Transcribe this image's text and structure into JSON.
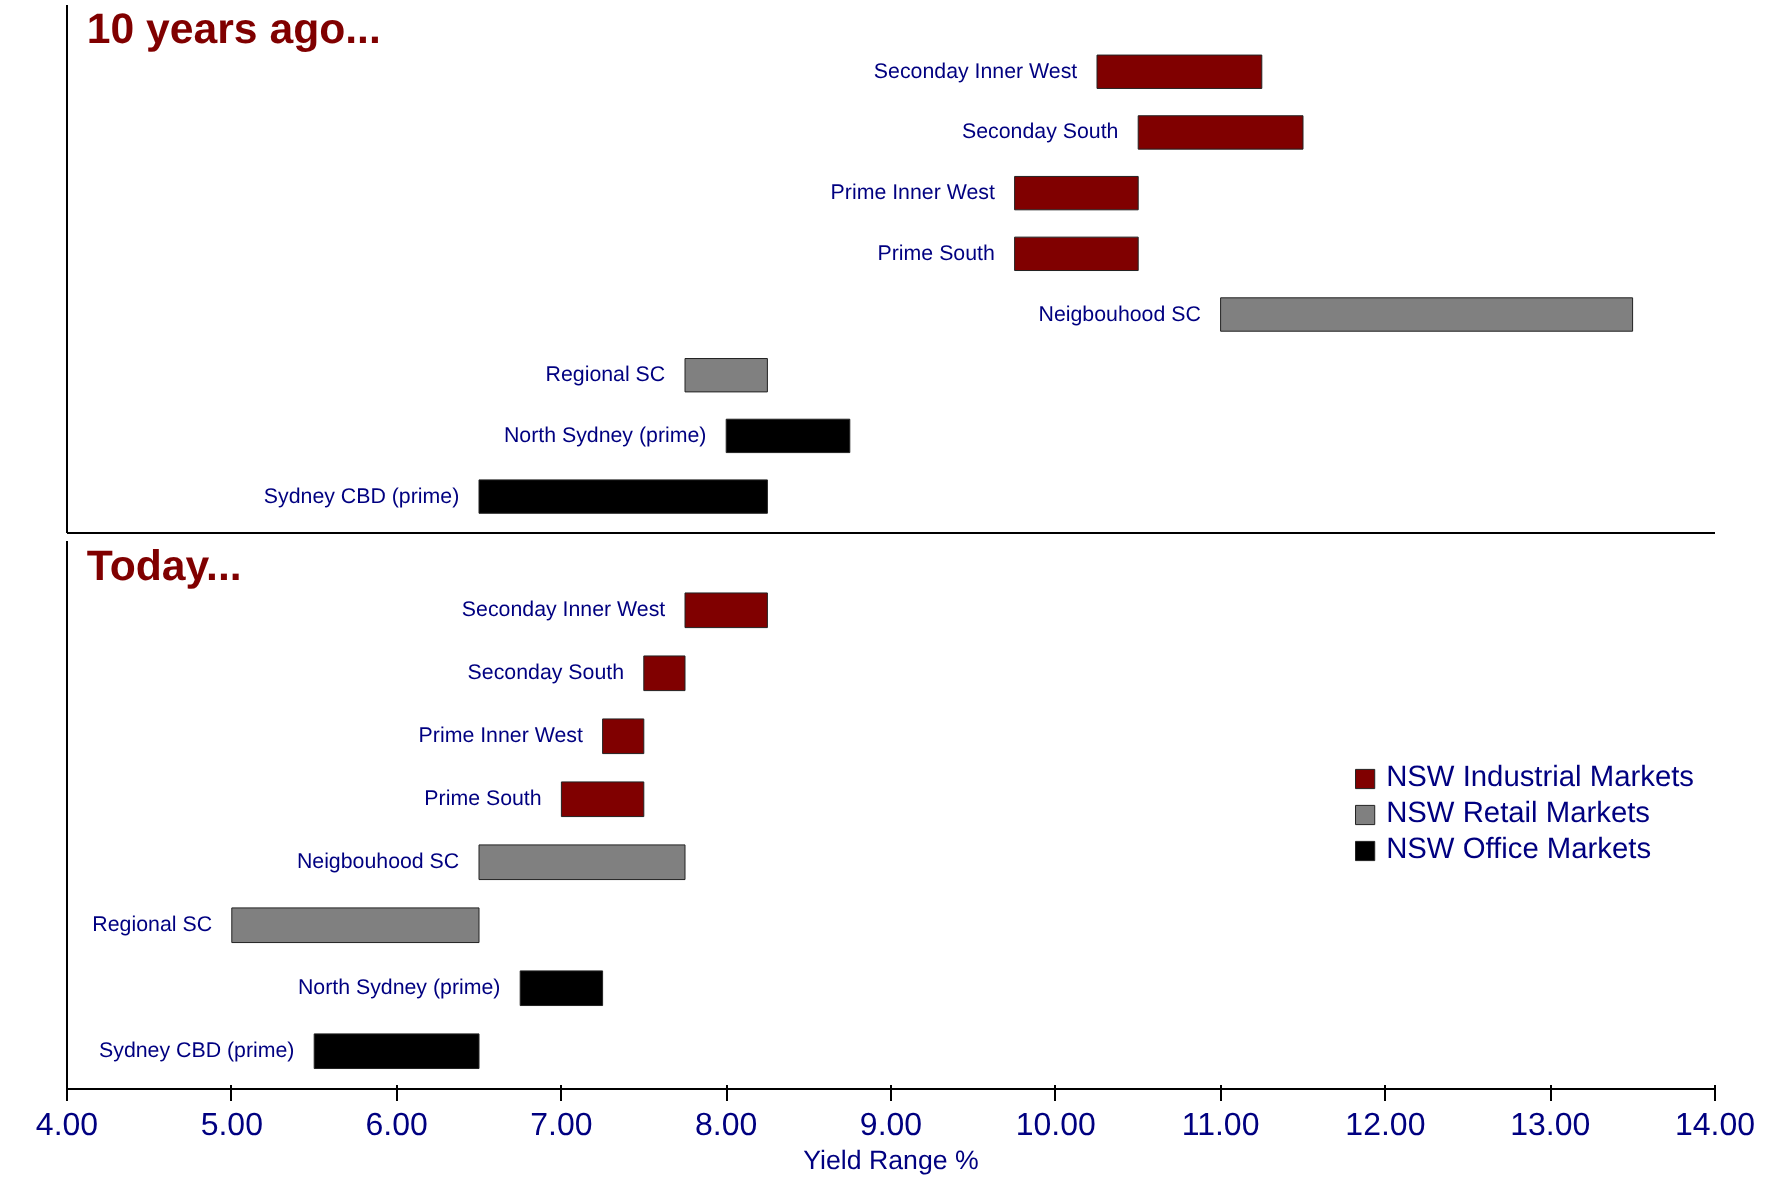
{
  "chart_data": [
    {
      "type": "bar",
      "orientation": "horizontal",
      "title": "10 years ago...",
      "categories": [
        "Seconday Inner West",
        "Seconday South",
        "Prime Inner West",
        "Prime South",
        "Neigbouhood SC",
        "Regional SC",
        "North Sydney (prime)",
        "Sydney CBD (prime)"
      ],
      "series": [
        {
          "color": "#800000",
          "base": [
            10.25,
            10.5,
            9.75,
            9.75,
            null,
            null,
            null,
            null
          ],
          "values": [
            1.0,
            1.0,
            0.75,
            0.75,
            null,
            null,
            null,
            null
          ]
        },
        {
          "color": "#808080",
          "base": [
            null,
            null,
            null,
            null,
            11.0,
            7.75,
            null,
            null
          ],
          "values": [
            null,
            null,
            null,
            null,
            2.5,
            0.5,
            null,
            null
          ]
        },
        {
          "color": "#000000",
          "base": [
            null,
            null,
            null,
            null,
            null,
            null,
            8.0,
            6.5
          ],
          "values": [
            null,
            null,
            null,
            null,
            null,
            null,
            0.75,
            1.75
          ]
        }
      ],
      "xlim": [
        4,
        14
      ],
      "tick_labels": false,
      "grid": false,
      "legend": false
    },
    {
      "type": "bar",
      "orientation": "horizontal",
      "title": "Today...",
      "xlabel": "Yield Range %",
      "categories": [
        "Seconday Inner West",
        "Seconday South",
        "Prime Inner West",
        "Prime South",
        "Neigbouhood SC",
        "Regional SC",
        "North Sydney (prime)",
        "Sydney CBD (prime)"
      ],
      "series": [
        {
          "name": "NSW Industrial Markets",
          "color": "#800000",
          "base": [
            7.75,
            7.5,
            7.25,
            7.0,
            null,
            null,
            null,
            null
          ],
          "values": [
            0.5,
            0.25,
            0.25,
            0.5,
            null,
            null,
            null,
            null
          ]
        },
        {
          "name": "NSW Retail Markets",
          "color": "#808080",
          "base": [
            null,
            null,
            null,
            null,
            6.5,
            5.0,
            null,
            null
          ],
          "values": [
            null,
            null,
            null,
            null,
            1.25,
            1.5,
            null,
            null
          ]
        },
        {
          "name": "NSW Office Markets",
          "color": "#000000",
          "base": [
            null,
            null,
            null,
            null,
            null,
            null,
            6.75,
            5.5
          ],
          "values": [
            null,
            null,
            null,
            null,
            null,
            null,
            0.5,
            1.0
          ]
        }
      ],
      "xlim": [
        4,
        14
      ],
      "xticks": [
        {
          "value": 4,
          "label": "4.00"
        },
        {
          "value": 5,
          "label": "5.00"
        },
        {
          "value": 6,
          "label": "6.00"
        },
        {
          "value": 7,
          "label": "7.00"
        },
        {
          "value": 8,
          "label": "8.00"
        },
        {
          "value": 9,
          "label": "9.00"
        },
        {
          "value": 10,
          "label": "10.00"
        },
        {
          "value": 11,
          "label": "11.00"
        },
        {
          "value": 12,
          "label": "12.00"
        },
        {
          "value": 13,
          "label": "13.00"
        },
        {
          "value": 14,
          "label": "14.00"
        }
      ],
      "tick_labels": "x",
      "grid": false,
      "legend": "right"
    }
  ]
}
